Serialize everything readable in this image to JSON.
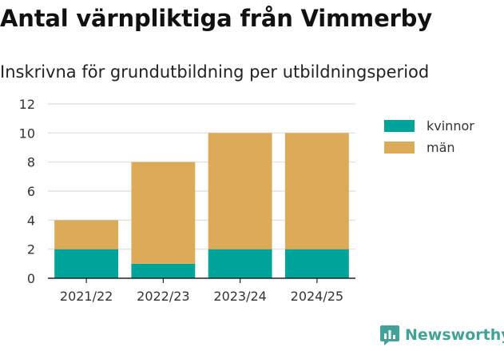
{
  "title": "Antal värnpliktiga från Vimmerby",
  "subtitle": "Inskrivna för grundutbildning per utbildningsperiod",
  "brand": {
    "name": "Newsworthy",
    "icon": "newsworthy-logo-icon",
    "color": "#43a297"
  },
  "chart_data": {
    "type": "bar",
    "stacked": true,
    "categories": [
      "2021/22",
      "2022/23",
      "2023/24",
      "2024/25"
    ],
    "series": [
      {
        "name": "kvinnor",
        "color": "#00a39a",
        "values": [
          2,
          1,
          2,
          2
        ]
      },
      {
        "name": "män",
        "color": "#dbab5a",
        "values": [
          2,
          7,
          8,
          8
        ]
      }
    ],
    "ylim": [
      0,
      12
    ],
    "yticks": [
      0,
      2,
      4,
      6,
      8,
      10,
      12
    ],
    "grid": true,
    "legend": "right",
    "xlabel": "",
    "ylabel": ""
  }
}
